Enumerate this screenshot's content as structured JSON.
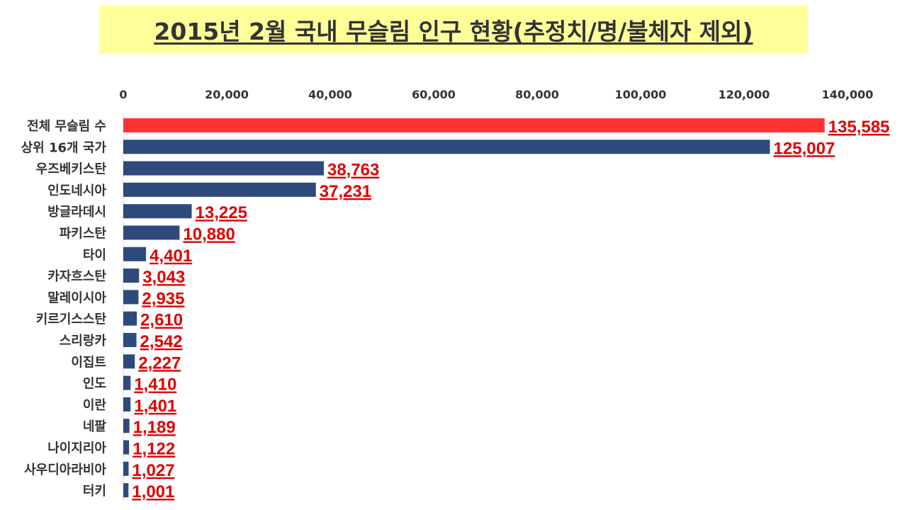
{
  "chart_data": {
    "type": "bar",
    "orientation": "horizontal",
    "title": "2015년 2월 국내 무슬림 인구 현황(추정치/명/불체자 제외)",
    "xlabel": "",
    "ylabel": "",
    "xlim": [
      0,
      140000
    ],
    "x_ticks": [
      "0",
      "20,000",
      "40,000",
      "60,000",
      "80,000",
      "100,000",
      "120,000",
      "140,000"
    ],
    "x_axis_position": "top",
    "grid": false,
    "legend": "none",
    "categories": [
      "전체 무슬림 수",
      "상위 16개 국가",
      "우즈베키스탄",
      "인도네시아",
      "방글라데시",
      "파키스탄",
      "타이",
      "카자흐스탄",
      "말레이시아",
      "키르기스스탄",
      "스리랑카",
      "이집트",
      "인도",
      "이란",
      "네팔",
      "나이지리아",
      "사우디아라비아",
      "터키"
    ],
    "values": [
      135585,
      125007,
      38763,
      37231,
      13225,
      10880,
      4401,
      3043,
      2935,
      2610,
      2542,
      2227,
      1410,
      1401,
      1189,
      1122,
      1027,
      1001
    ],
    "data_labels": [
      "135,585",
      "125,007",
      "38,763",
      "37,231",
      "13,225",
      "10,880",
      "4,401",
      "3,043",
      "2,935",
      "2,610",
      "2,542",
      "2,227",
      "1,410",
      "1,401",
      "1,189",
      "1,122",
      "1,027",
      "1,001"
    ],
    "bar_colors": [
      "#ff3333",
      "#2e4a7d",
      "#2e4a7d",
      "#2e4a7d",
      "#2e4a7d",
      "#2e4a7d",
      "#2e4a7d",
      "#2e4a7d",
      "#2e4a7d",
      "#2e4a7d",
      "#2e4a7d",
      "#2e4a7d",
      "#2e4a7d",
      "#2e4a7d",
      "#2e4a7d",
      "#2e4a7d",
      "#2e4a7d",
      "#2e4a7d"
    ],
    "label_color": "#e00000",
    "title_background": "#ffff99"
  }
}
